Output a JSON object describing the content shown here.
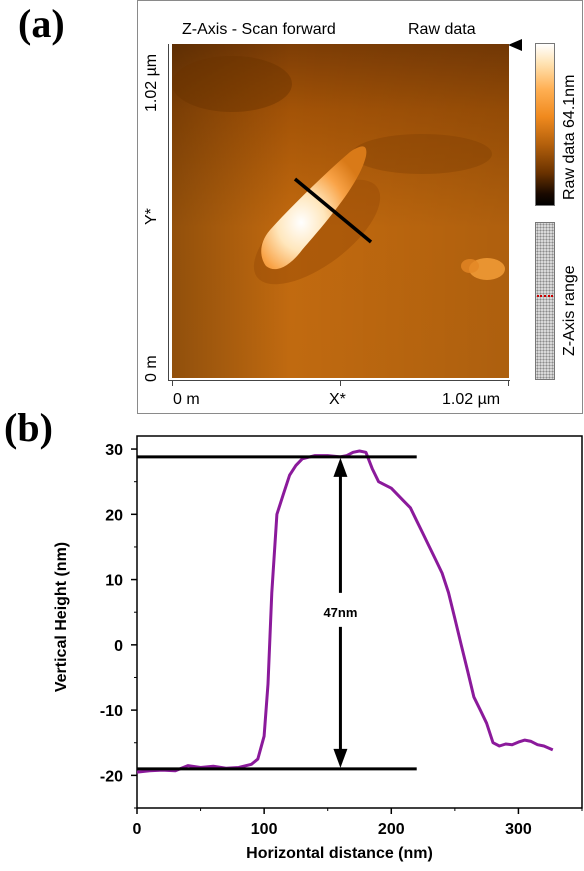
{
  "panel_a": {
    "label": "(a)",
    "title": "Z-Axis - Scan forward",
    "title_right": "Raw data",
    "y_tick_top": "1.02 µm",
    "y_axis_label": "Y*",
    "y_tick_bottom": "0 m",
    "x_tick_left": "0 m",
    "x_axis_label": "X*",
    "x_tick_right": "1.02 µm",
    "colorbar_label": "Raw data 64.1nm",
    "range_label": "Z-Axis range",
    "colors": {
      "colorbar_top": "#ffffff",
      "colorbar_mid": "#e07a12",
      "colorbar_bottom": "#000000",
      "marker": "#cc0000"
    }
  },
  "panel_b": {
    "label": "(b)"
  },
  "chart_data": {
    "type": "line",
    "xlabel": "Horizontal distance (nm)",
    "ylabel": "Vertical Height (nm)",
    "xlim": [
      0,
      350
    ],
    "ylim": [
      -25,
      32
    ],
    "x_ticks": [
      0,
      100,
      200,
      300
    ],
    "y_ticks": [
      -20,
      -10,
      0,
      10,
      20,
      30
    ],
    "color": "#8b1a9b",
    "x": [
      0,
      10,
      20,
      30,
      40,
      50,
      60,
      70,
      80,
      90,
      95,
      100,
      103,
      106,
      110,
      115,
      120,
      125,
      130,
      140,
      150,
      160,
      165,
      170,
      175,
      180,
      185,
      190,
      195,
      200,
      205,
      210,
      215,
      220,
      225,
      230,
      235,
      240,
      245,
      250,
      255,
      260,
      265,
      270,
      275,
      280,
      285,
      290,
      295,
      300,
      305,
      310,
      315,
      320,
      327
    ],
    "y": [
      -19.5,
      -19.3,
      -19.2,
      -19.3,
      -18.5,
      -18.8,
      -18.6,
      -18.9,
      -18.8,
      -18.3,
      -17.5,
      -14,
      -6,
      8,
      20,
      23,
      26,
      27.5,
      28.5,
      29,
      29,
      28.8,
      29,
      29.5,
      29.7,
      29.5,
      27,
      25,
      24.5,
      24,
      23,
      22,
      21,
      19,
      17,
      15,
      13,
      11,
      8,
      4,
      0,
      -4,
      -8,
      -10,
      -12,
      -15,
      -15.5,
      -15.2,
      -15.3,
      -14.9,
      -14.6,
      -14.8,
      -15.3,
      -15.5,
      -16.1
    ],
    "annotations": {
      "upper_line_y": 28.8,
      "lower_line_y": -19,
      "line_x_range": [
        0,
        220
      ],
      "arrow_x": 160,
      "label": "47nm"
    }
  }
}
